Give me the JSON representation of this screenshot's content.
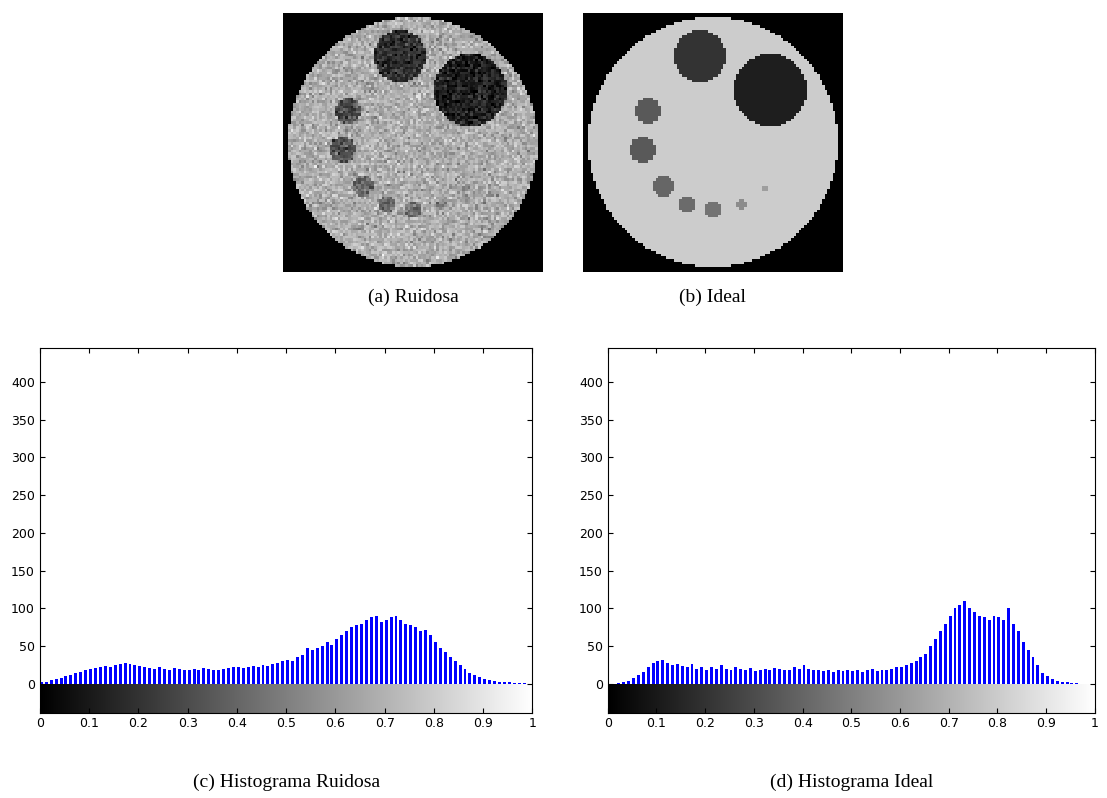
{
  "images": [
    {
      "caption": "(a) Ruidosa",
      "resolution": 100,
      "noise": 0.08,
      "disk": {
        "center": [
          0.5,
          0.5
        ],
        "radius": 0.48,
        "level": 0.68
      },
      "holes": [
        {
          "center": [
            0.72,
            0.3
          ],
          "radius": 0.14,
          "level": 0.12
        },
        {
          "center": [
            0.45,
            0.17
          ],
          "radius": 0.1,
          "level": 0.18
        },
        {
          "center": [
            0.25,
            0.38
          ],
          "radius": 0.05,
          "level": 0.3
        },
        {
          "center": [
            0.23,
            0.53
          ],
          "radius": 0.05,
          "level": 0.32
        },
        {
          "center": [
            0.31,
            0.67
          ],
          "radius": 0.04,
          "level": 0.4
        },
        {
          "center": [
            0.4,
            0.74
          ],
          "radius": 0.03,
          "level": 0.42
        },
        {
          "center": [
            0.5,
            0.76
          ],
          "radius": 0.03,
          "level": 0.45
        },
        {
          "center": [
            0.61,
            0.74
          ],
          "radius": 0.02,
          "level": 0.5
        },
        {
          "center": [
            0.7,
            0.68
          ],
          "radius": 0.015,
          "level": 0.55
        }
      ]
    },
    {
      "caption": "(b) Ideal",
      "resolution": 100,
      "noise": 0.0,
      "disk": {
        "center": [
          0.5,
          0.5
        ],
        "radius": 0.48,
        "level": 0.8
      },
      "holes": [
        {
          "center": [
            0.72,
            0.3
          ],
          "radius": 0.14,
          "level": 0.12
        },
        {
          "center": [
            0.45,
            0.17
          ],
          "radius": 0.1,
          "level": 0.2
        },
        {
          "center": [
            0.25,
            0.38
          ],
          "radius": 0.05,
          "level": 0.35
        },
        {
          "center": [
            0.23,
            0.53
          ],
          "radius": 0.05,
          "level": 0.35
        },
        {
          "center": [
            0.31,
            0.67
          ],
          "radius": 0.04,
          "level": 0.4
        },
        {
          "center": [
            0.4,
            0.74
          ],
          "radius": 0.03,
          "level": 0.42
        },
        {
          "center": [
            0.5,
            0.76
          ],
          "radius": 0.03,
          "level": 0.45
        },
        {
          "center": [
            0.61,
            0.74
          ],
          "radius": 0.02,
          "level": 0.55
        },
        {
          "center": [
            0.7,
            0.68
          ],
          "radius": 0.015,
          "level": 0.62
        }
      ]
    }
  ],
  "chart_data": [
    {
      "type": "histogram",
      "caption": "(c) Histograma Ruidosa",
      "color": "#0000ff",
      "bins": [
        0,
        0.01,
        0.02,
        0.03,
        0.04,
        0.05,
        0.06,
        0.07,
        0.08,
        0.09,
        0.1,
        0.11,
        0.12,
        0.13,
        0.14,
        0.15,
        0.16,
        0.17,
        0.18,
        0.19,
        0.2,
        0.21,
        0.22,
        0.23,
        0.24,
        0.25,
        0.26,
        0.27,
        0.28,
        0.29,
        0.3,
        0.31,
        0.32,
        0.33,
        0.34,
        0.35,
        0.36,
        0.37,
        0.38,
        0.39,
        0.4,
        0.41,
        0.42,
        0.43,
        0.44,
        0.45,
        0.46,
        0.47,
        0.48,
        0.49,
        0.5,
        0.51,
        0.52,
        0.53,
        0.54,
        0.55,
        0.56,
        0.57,
        0.58,
        0.59,
        0.6,
        0.61,
        0.62,
        0.63,
        0.64,
        0.65,
        0.66,
        0.67,
        0.68,
        0.69,
        0.7,
        0.71,
        0.72,
        0.73,
        0.74,
        0.75,
        0.76,
        0.77,
        0.78,
        0.79,
        0.8,
        0.81,
        0.82,
        0.83,
        0.84,
        0.85,
        0.86,
        0.87,
        0.88,
        0.89,
        0.9,
        0.91,
        0.92,
        0.93,
        0.94,
        0.95,
        0.96,
        0.97,
        0.98,
        0.99,
        1
      ],
      "counts": [
        2,
        3,
        5,
        6,
        8,
        10,
        12,
        14,
        16,
        18,
        20,
        21,
        22,
        24,
        23,
        25,
        27,
        28,
        26,
        25,
        24,
        22,
        21,
        20,
        22,
        20,
        19,
        21,
        20,
        19,
        18,
        20,
        19,
        21,
        20,
        18,
        19,
        20,
        21,
        22,
        22,
        21,
        23,
        24,
        22,
        25,
        24,
        27,
        28,
        30,
        32,
        30,
        35,
        38,
        48,
        45,
        47,
        50,
        55,
        52,
        60,
        65,
        70,
        75,
        78,
        80,
        85,
        88,
        90,
        82,
        85,
        88,
        90,
        84,
        80,
        78,
        75,
        70,
        72,
        65,
        55,
        48,
        42,
        36,
        30,
        25,
        20,
        15,
        12,
        9,
        6,
        5,
        4,
        3,
        2,
        2,
        1,
        1,
        1,
        0
      ],
      "xlim": [
        0,
        1
      ],
      "ylim": [
        -38,
        445
      ],
      "xticks": [
        0,
        0.1,
        0.2,
        0.3,
        0.4,
        0.5,
        0.6,
        0.7,
        0.8,
        0.9,
        1
      ],
      "yticks": [
        0,
        50,
        100,
        150,
        200,
        250,
        300,
        350,
        400
      ]
    },
    {
      "type": "histogram",
      "caption": "(d) Histograma Ideal",
      "color": "#0000ff",
      "bins": [
        0,
        0.01,
        0.02,
        0.03,
        0.04,
        0.05,
        0.06,
        0.07,
        0.08,
        0.09,
        0.1,
        0.11,
        0.12,
        0.13,
        0.14,
        0.15,
        0.16,
        0.17,
        0.18,
        0.19,
        0.2,
        0.21,
        0.22,
        0.23,
        0.24,
        0.25,
        0.26,
        0.27,
        0.28,
        0.29,
        0.3,
        0.31,
        0.32,
        0.33,
        0.34,
        0.35,
        0.36,
        0.37,
        0.38,
        0.39,
        0.4,
        0.41,
        0.42,
        0.43,
        0.44,
        0.45,
        0.46,
        0.47,
        0.48,
        0.49,
        0.5,
        0.51,
        0.52,
        0.53,
        0.54,
        0.55,
        0.56,
        0.57,
        0.58,
        0.59,
        0.6,
        0.61,
        0.62,
        0.63,
        0.64,
        0.65,
        0.66,
        0.67,
        0.68,
        0.69,
        0.7,
        0.71,
        0.72,
        0.73,
        0.74,
        0.75,
        0.76,
        0.77,
        0.78,
        0.79,
        0.8,
        0.81,
        0.82,
        0.83,
        0.84,
        0.85,
        0.86,
        0.87,
        0.88,
        0.89,
        0.9,
        0.91,
        0.92,
        0.93,
        0.94,
        0.95,
        0.96,
        0.97,
        0.98,
        0.99,
        1
      ],
      "counts": [
        0,
        0,
        1,
        2,
        4,
        8,
        12,
        16,
        22,
        28,
        30,
        32,
        28,
        25,
        27,
        24,
        22,
        26,
        20,
        22,
        18,
        22,
        20,
        25,
        20,
        18,
        22,
        20,
        19,
        21,
        17,
        19,
        20,
        18,
        21,
        20,
        19,
        18,
        22,
        20,
        25,
        20,
        18,
        19,
        17,
        18,
        16,
        18,
        17,
        19,
        17,
        18,
        16,
        18,
        20,
        17,
        19,
        18,
        20,
        22,
        22,
        25,
        28,
        30,
        35,
        40,
        50,
        60,
        70,
        80,
        90,
        100,
        105,
        110,
        100,
        95,
        90,
        88,
        85,
        90,
        88,
        85,
        100,
        80,
        70,
        55,
        45,
        35,
        25,
        15,
        10,
        6,
        4,
        3,
        2,
        1,
        1,
        0,
        0,
        0
      ],
      "xlim": [
        0,
        1
      ],
      "ylim": [
        -38,
        445
      ],
      "xticks": [
        0,
        0.1,
        0.2,
        0.3,
        0.4,
        0.5,
        0.6,
        0.7,
        0.8,
        0.9,
        1
      ],
      "yticks": [
        0,
        50,
        100,
        150,
        200,
        250,
        300,
        350,
        400
      ]
    }
  ]
}
